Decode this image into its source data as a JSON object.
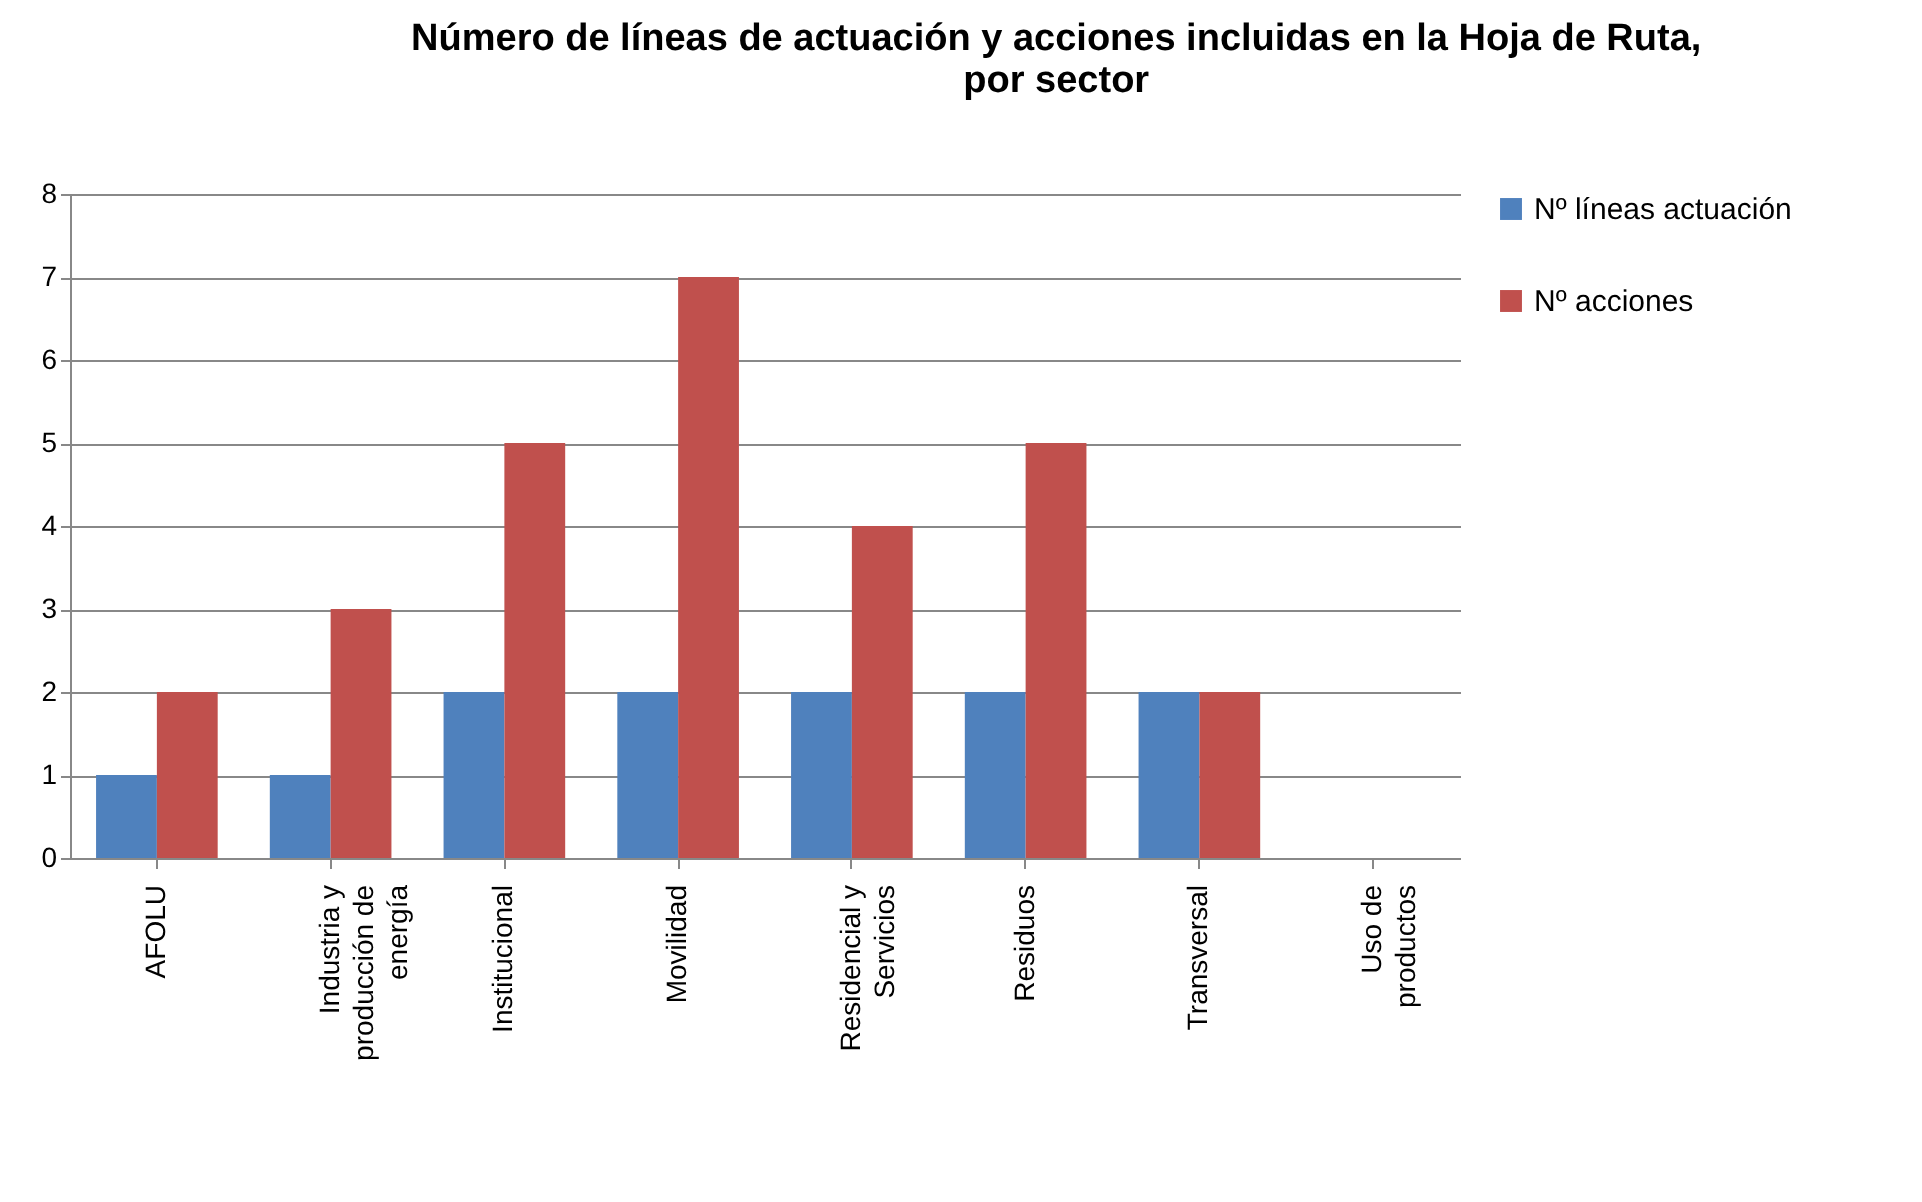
{
  "chart_data": {
    "type": "bar",
    "title": "Número de líneas de actuación y acciones incluidas en la Hoja de Ruta, por sector",
    "categories": [
      "AFOLU",
      "Industria y producción de energía",
      "Institucional",
      "Movilidad",
      "Residencial y Servicios",
      "Residuos",
      "Transversal",
      "Uso de productos"
    ],
    "series": [
      {
        "name": "Nº líneas actuación",
        "color": "#4f81bd",
        "values": [
          1,
          1,
          2,
          2,
          2,
          2,
          2,
          0
        ]
      },
      {
        "name": "Nº acciones",
        "color": "#c0504d",
        "values": [
          2,
          3,
          5,
          7,
          4,
          5,
          2,
          0
        ]
      }
    ],
    "ylim": [
      0,
      8
    ],
    "yticks": [
      0,
      1,
      2,
      3,
      4,
      5,
      6,
      7,
      8
    ],
    "grid": "y",
    "legend": "right"
  }
}
